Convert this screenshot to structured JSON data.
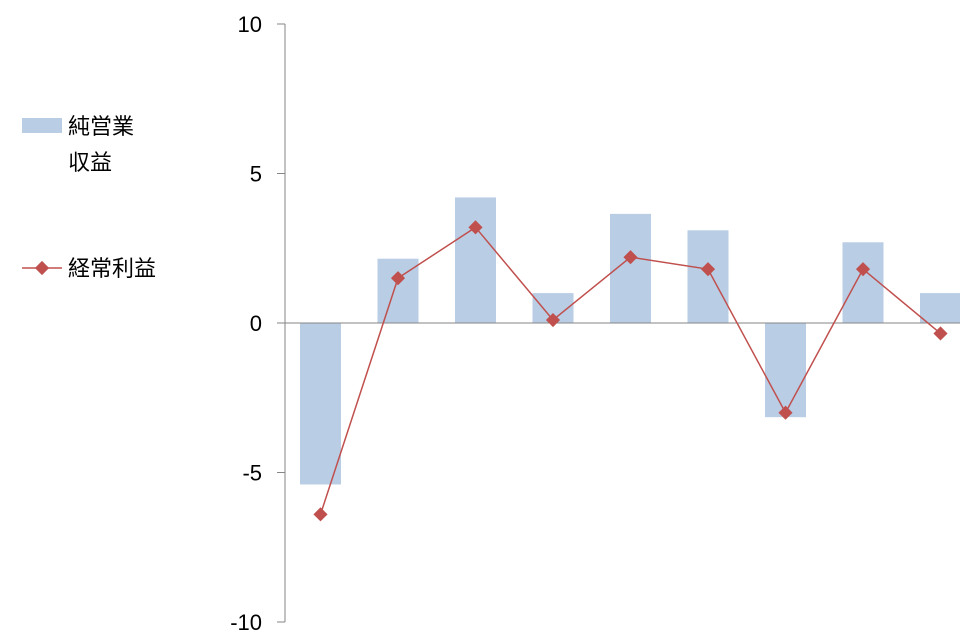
{
  "chart_data": {
    "type": "bar",
    "title": "",
    "xlabel": "",
    "ylabel": "",
    "ylim": [
      -10,
      10
    ],
    "yticks": [
      "10",
      "5",
      "0",
      "-5",
      "-10"
    ],
    "grid": false,
    "legend_position": "left",
    "series": [
      {
        "name": "純営業収益",
        "name_lines": [
          "純営業",
          "収益"
        ],
        "type": "bar",
        "color": "#b9cde5",
        "values": [
          -5.4,
          2.15,
          4.2,
          1.0,
          3.65,
          3.1,
          -3.15,
          2.7,
          1.0
        ]
      },
      {
        "name": "経常利益",
        "name_lines": [
          "経常利益"
        ],
        "type": "line",
        "color": "#c0504d",
        "values": [
          -6.4,
          1.5,
          3.2,
          0.1,
          2.2,
          1.8,
          -3.0,
          1.8,
          -0.35
        ]
      }
    ]
  }
}
